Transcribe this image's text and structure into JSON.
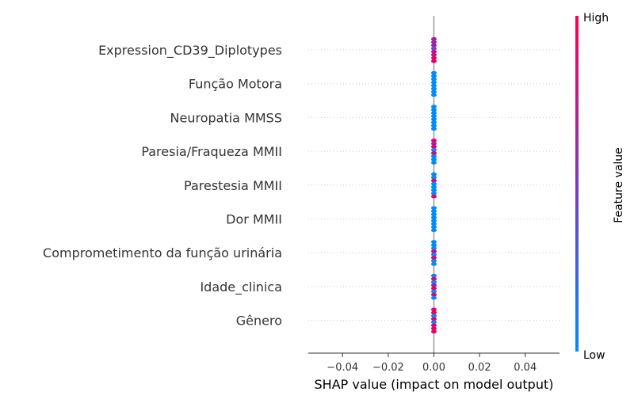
{
  "chart_data": {
    "type": "scatter",
    "subtype": "shap-beeswarm",
    "xlabel": "SHAP value (impact on model output)",
    "xlim": [
      -0.055,
      0.055
    ],
    "xticks": [
      -0.04,
      -0.02,
      0.0,
      0.02,
      0.04
    ],
    "xtick_labels": [
      "−0.04",
      "−0.02",
      "0.00",
      "0.02",
      "0.04"
    ],
    "features": [
      "Expression_CD39_Diplotypes",
      "Função Motora",
      "Neuropatia MMSS",
      "Paresia/Fraqueza MMII",
      "Parestesia MMII",
      "Dor MMII",
      "Comprometimento da função urinária",
      "Idade_clinica",
      "Gênero"
    ],
    "points": [
      {
        "feature": "Expression_CD39_Diplotypes",
        "shap_value": 0.0,
        "color_sequence": [
          "#a0219f",
          "#a0219f",
          "#a0219f",
          "#7046c8",
          "#c2128b",
          "#c2128b",
          "#e8006b",
          "#e8006b"
        ]
      },
      {
        "feature": "Função Motora",
        "shap_value": 0.0,
        "color_sequence": [
          "#008bfb",
          "#008bfb",
          "#008bfb",
          "#008bfb",
          "#008bfb",
          "#008bfb",
          "#008bfb",
          "#008bfb"
        ]
      },
      {
        "feature": "Neuropatia MMSS",
        "shap_value": 0.0,
        "color_sequence": [
          "#008bfb",
          "#008bfb",
          "#008bfb",
          "#008bfb",
          "#008bfb",
          "#008bfb",
          "#008bfb",
          "#008bfb"
        ]
      },
      {
        "feature": "Paresia/Fraqueza MMII",
        "shap_value": 0.0,
        "color_sequence": [
          "#e8006b",
          "#a0219f",
          "#e8006b",
          "#008bfb",
          "#e8006b",
          "#008bfb",
          "#008bfb",
          "#008bfb"
        ]
      },
      {
        "feature": "Parestesia MMII",
        "shap_value": 0.0,
        "color_sequence": [
          "#008bfb",
          "#008bfb",
          "#e8006b",
          "#008bfb",
          "#008bfb",
          "#008bfb",
          "#008bfb",
          "#e8006b"
        ]
      },
      {
        "feature": "Dor MMII",
        "shap_value": 0.0,
        "color_sequence": [
          "#008bfb",
          "#008bfb",
          "#008bfb",
          "#008bfb",
          "#008bfb",
          "#008bfb",
          "#008bfb",
          "#008bfb"
        ]
      },
      {
        "feature": "Comprometimento da função urinária",
        "shap_value": 0.0,
        "color_sequence": [
          "#008bfb",
          "#008bfb",
          "#008bfb",
          "#e8006b",
          "#008bfb",
          "#e8006b",
          "#008bfb",
          "#008bfb"
        ]
      },
      {
        "feature": "Idade_clinica",
        "shap_value": 0.0,
        "color_sequence": [
          "#008bfb",
          "#e8006b",
          "#008bfb",
          "#a0219f",
          "#e8006b",
          "#008bfb",
          "#e8006b",
          "#008bfb"
        ]
      },
      {
        "feature": "Gênero",
        "shap_value": 0.0,
        "color_sequence": [
          "#e8006b",
          "#e8006b",
          "#008bfb",
          "#e8006b",
          "#008bfb",
          "#e8006b",
          "#e8006b",
          "#e8006b"
        ]
      }
    ],
    "colorbar": {
      "title": "Feature value",
      "high_label": "High",
      "low_label": "Low",
      "color_low": "#008bfb",
      "color_high": "#ff0052"
    },
    "grid": "dotted horizontal row guides",
    "legend": "colorbar right"
  }
}
